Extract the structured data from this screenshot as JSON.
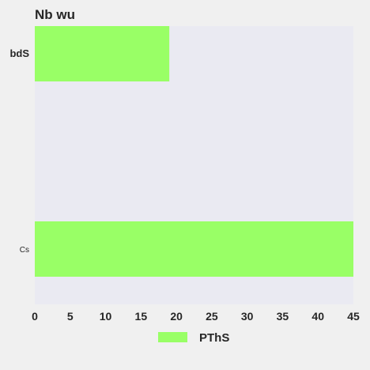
{
  "chart_data": {
    "type": "bar",
    "orientation": "horizontal",
    "title": "Nb  wu",
    "xlabel": "",
    "ylabel": "",
    "categories": [
      "bdS",
      "Cs"
    ],
    "series": [
      {
        "name": "PThS",
        "values": [
          19,
          45
        ]
      }
    ],
    "xlim": [
      0,
      45
    ],
    "xticks": [
      0,
      5,
      10,
      15,
      20,
      25,
      30,
      35,
      40,
      45
    ],
    "grid": false,
    "legend": "bottom-center",
    "colors": {
      "bar": "#99ff66",
      "plot_background": "#eaeaf2",
      "page_background": "#f0f0f0",
      "text": "#262626"
    }
  }
}
